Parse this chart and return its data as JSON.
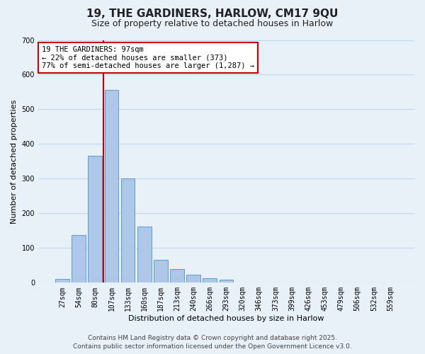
{
  "title": "19, THE GARDINERS, HARLOW, CM17 9QU",
  "subtitle": "Size of property relative to detached houses in Harlow",
  "xlabel": "Distribution of detached houses by size in Harlow",
  "ylabel": "Number of detached properties",
  "categories": [
    "27sqm",
    "54sqm",
    "80sqm",
    "107sqm",
    "133sqm",
    "160sqm",
    "187sqm",
    "213sqm",
    "240sqm",
    "266sqm",
    "293sqm",
    "320sqm",
    "346sqm",
    "373sqm",
    "399sqm",
    "426sqm",
    "453sqm",
    "479sqm",
    "506sqm",
    "532sqm",
    "559sqm"
  ],
  "bar_heights": [
    10,
    138,
    367,
    557,
    300,
    162,
    65,
    40,
    23,
    13,
    8,
    1,
    0,
    0,
    0,
    0,
    0,
    0,
    0,
    0,
    0
  ],
  "bar_color": "#aec6e8",
  "bar_edge_color": "#5b9bd5",
  "grid_color": "#c0d8f0",
  "background_color": "#e8f0f8",
  "vline_color": "#cc0000",
  "annotation_title": "19 THE GARDINERS: 97sqm",
  "annotation_line1": "← 22% of detached houses are smaller (373)",
  "annotation_line2": "77% of semi-detached houses are larger (1,287) →",
  "annotation_box_color": "#ffffff",
  "annotation_box_edge": "#cc0000",
  "ylim": [
    0,
    700
  ],
  "yticks": [
    0,
    100,
    200,
    300,
    400,
    500,
    600,
    700
  ],
  "footer_line1": "Contains HM Land Registry data © Crown copyright and database right 2025.",
  "footer_line2": "Contains public sector information licensed under the Open Government Licence v3.0.",
  "title_fontsize": 11,
  "subtitle_fontsize": 9,
  "axis_label_fontsize": 8,
  "tick_fontsize": 7,
  "annotation_fontsize": 7.5,
  "footer_fontsize": 6.5
}
